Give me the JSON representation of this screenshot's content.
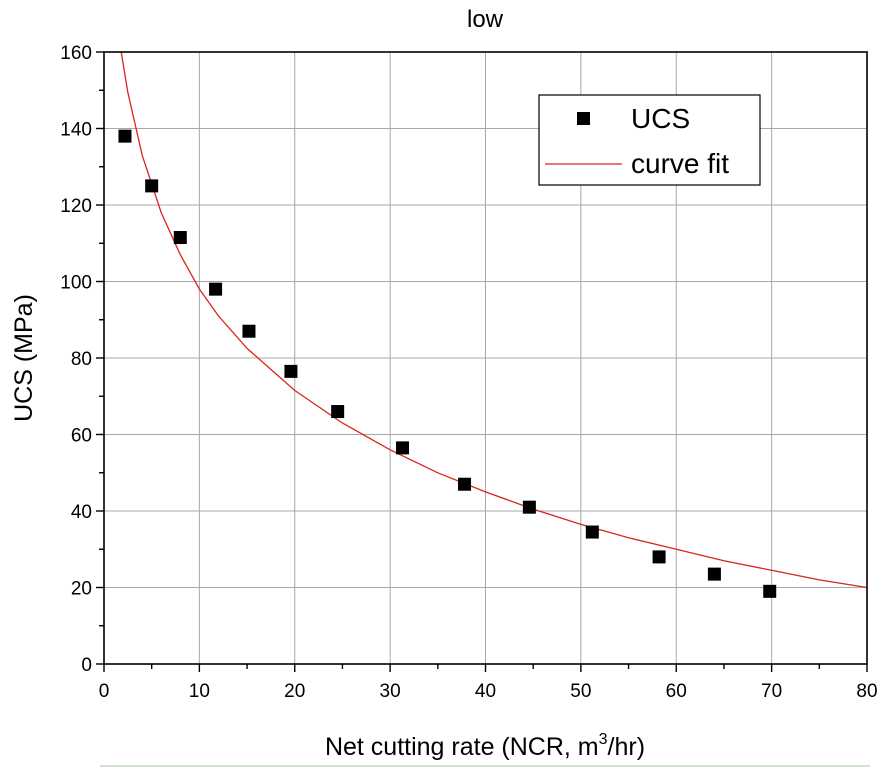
{
  "chart_data": {
    "type": "scatter",
    "title": "low",
    "xlabel_prefix": "Net cutting rate (NCR, m",
    "xlabel_sup": "3",
    "xlabel_suffix": "/hr)",
    "ylabel": "UCS (MPa)",
    "xlim": [
      0,
      80
    ],
    "ylim": [
      0,
      160
    ],
    "x_ticks": [
      "0",
      "10",
      "20",
      "30",
      "40",
      "50",
      "60",
      "70",
      "80"
    ],
    "y_ticks": [
      "0",
      "20",
      "40",
      "60",
      "80",
      "100",
      "120",
      "140",
      "160"
    ],
    "grid": true,
    "legend": {
      "position": "top-right",
      "entries": [
        {
          "label": "UCS",
          "marker": "square"
        },
        {
          "label": "curve fit",
          "marker": "line"
        }
      ]
    },
    "series": [
      {
        "name": "UCS",
        "kind": "scatter",
        "color": "#000000",
        "points": [
          {
            "x": 2.2,
            "y": 138
          },
          {
            "x": 5.0,
            "y": 125
          },
          {
            "x": 8.0,
            "y": 111.5
          },
          {
            "x": 11.7,
            "y": 98
          },
          {
            "x": 15.2,
            "y": 87
          },
          {
            "x": 19.6,
            "y": 76.5
          },
          {
            "x": 24.5,
            "y": 66
          },
          {
            "x": 31.3,
            "y": 56.5
          },
          {
            "x": 37.8,
            "y": 47
          },
          {
            "x": 44.6,
            "y": 41
          },
          {
            "x": 51.2,
            "y": 34.5
          },
          {
            "x": 58.2,
            "y": 28
          },
          {
            "x": 64.0,
            "y": 23.5
          },
          {
            "x": 69.8,
            "y": 19
          }
        ]
      },
      {
        "name": "curve fit",
        "kind": "line",
        "color": "#d9261c",
        "points": [
          {
            "x": 1.8,
            "y": 160
          },
          {
            "x": 2.5,
            "y": 149.5
          },
          {
            "x": 4,
            "y": 133
          },
          {
            "x": 6,
            "y": 118
          },
          {
            "x": 8,
            "y": 107
          },
          {
            "x": 10,
            "y": 98
          },
          {
            "x": 12,
            "y": 91
          },
          {
            "x": 15,
            "y": 82.5
          },
          {
            "x": 20,
            "y": 71.5
          },
          {
            "x": 25,
            "y": 63
          },
          {
            "x": 30,
            "y": 56
          },
          {
            "x": 35,
            "y": 50
          },
          {
            "x": 40,
            "y": 45
          },
          {
            "x": 45,
            "y": 40.5
          },
          {
            "x": 50,
            "y": 36.5
          },
          {
            "x": 55,
            "y": 33
          },
          {
            "x": 60,
            "y": 30
          },
          {
            "x": 65,
            "y": 27
          },
          {
            "x": 70,
            "y": 24.5
          },
          {
            "x": 75,
            "y": 22
          },
          {
            "x": 80,
            "y": 20
          }
        ]
      }
    ]
  }
}
